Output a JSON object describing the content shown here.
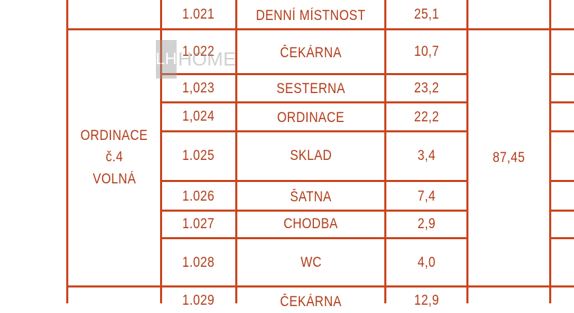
{
  "rows": [
    {
      "code": "1.021",
      "name": "DENNÍ MÍSTNOST",
      "area": "25,1"
    },
    {
      "code": "1.022",
      "name": "ČEKÁRNA",
      "area": "10,7"
    },
    {
      "code": "1,023",
      "name": "SESTERNA",
      "area": "23,2"
    },
    {
      "code": "1,024",
      "name": "ORDINACE",
      "area": "22,2"
    },
    {
      "code": "1.025",
      "name": "SKLAD",
      "area": "3,4"
    },
    {
      "code": "1.026",
      "name": "ŠATNA",
      "area": "7,4"
    },
    {
      "code": "1.027",
      "name": "CHODBA",
      "area": "2,9"
    },
    {
      "code": "1.028",
      "name": "WC",
      "area": "4,0"
    },
    {
      "code": "1.029",
      "name": "ČEKÁRNA",
      "area": "12,9"
    }
  ],
  "group": {
    "line1": "ORDINACE",
    "line2": "č.4",
    "line3": "VOLNÁ",
    "total": "87,45"
  },
  "watermark": {
    "logo": "LH",
    "text": "HOME"
  },
  "colors": {
    "line": "#c9451d",
    "text": "#b23d1a"
  }
}
